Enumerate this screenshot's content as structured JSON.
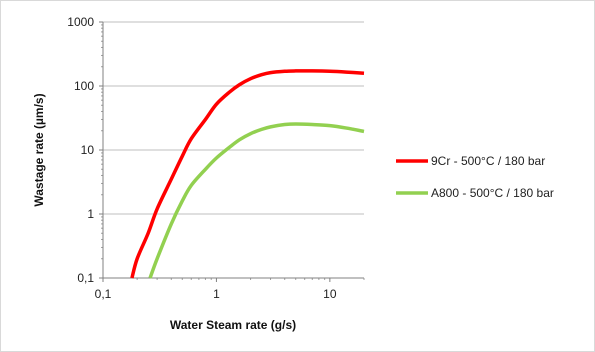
{
  "chart_data": {
    "type": "line",
    "title": "",
    "xlabel": "Water Steam rate (g/s)",
    "ylabel": "Wastage rate (µm/s)",
    "x_scale": "log",
    "y_scale": "log",
    "xlim": [
      0.1,
      20
    ],
    "ylim": [
      0.1,
      1000
    ],
    "x_ticks": [
      0.1,
      1,
      10
    ],
    "x_tick_labels": [
      "0,1",
      "1",
      "10"
    ],
    "y_ticks": [
      0.1,
      1,
      10,
      100,
      1000
    ],
    "y_tick_labels": [
      "0,1",
      "1",
      "10",
      "100",
      "1000"
    ],
    "grid": "horizontal",
    "legend_position": "right",
    "series": [
      {
        "name": "9Cr - 500°C / 180 bar",
        "color": "#ff0000",
        "x": [
          0.18,
          0.2,
          0.25,
          0.3,
          0.4,
          0.5,
          0.6,
          0.8,
          1.0,
          1.3,
          1.6,
          2.0,
          2.5,
          3.0,
          4.0,
          5.0,
          7.0,
          10.0,
          14.0,
          20.0
        ],
        "y": [
          0.1,
          0.2,
          0.5,
          1.2,
          3.5,
          8.0,
          15.0,
          30.0,
          52.0,
          80.0,
          105.0,
          130.0,
          150.0,
          162.0,
          170.0,
          172.0,
          172.0,
          170.0,
          165.0,
          158.0
        ]
      },
      {
        "name": "A800 - 500°C / 180 bar",
        "color": "#92d050",
        "x": [
          0.26,
          0.3,
          0.4,
          0.5,
          0.6,
          0.8,
          1.0,
          1.3,
          1.6,
          2.0,
          2.5,
          3.0,
          4.0,
          5.0,
          7.0,
          10.0,
          14.0,
          20.0
        ],
        "y": [
          0.1,
          0.2,
          0.7,
          1.6,
          2.8,
          5.0,
          7.5,
          11.0,
          14.5,
          18.0,
          21.0,
          23.0,
          25.0,
          25.5,
          25.0,
          24.0,
          22.0,
          19.5
        ]
      }
    ]
  }
}
